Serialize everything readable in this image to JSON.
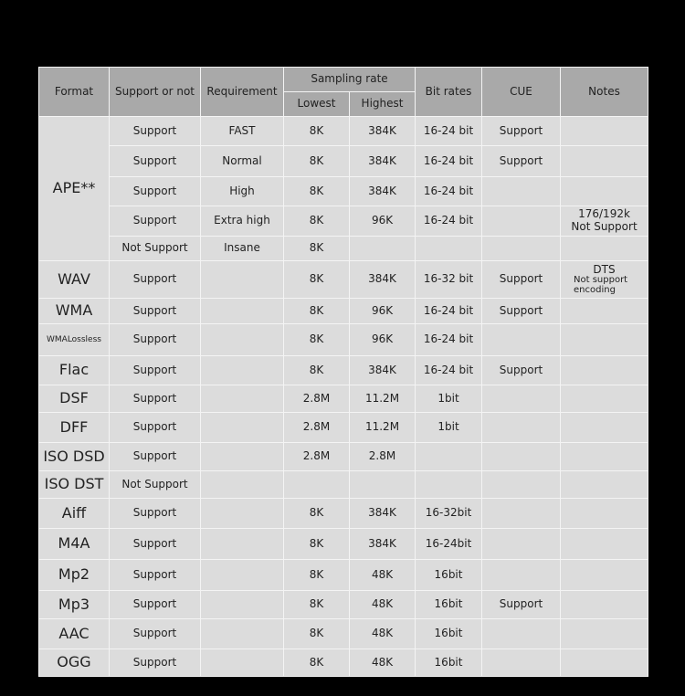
{
  "header": {
    "format": "Format",
    "support": "Support or not",
    "requirement": "Requirement",
    "sampling_rate": "Sampling rate",
    "lowest": "Lowest",
    "highest": "Highest",
    "bit_rates": "Bit rates",
    "cue": "CUE",
    "notes": "Notes"
  },
  "rows": [
    {
      "format": "APE**",
      "support": "Support",
      "requirement": "FAST",
      "lowest": "8K",
      "highest": "384K",
      "bitrate": "16-24 bit",
      "cue": "Support",
      "notes": ""
    },
    {
      "format": "",
      "support": "Support",
      "requirement": "Normal",
      "lowest": "8K",
      "highest": "384K",
      "bitrate": "16-24 bit",
      "cue": "Support",
      "notes": ""
    },
    {
      "format": "",
      "support": "Support",
      "requirement": "High",
      "lowest": "8K",
      "highest": "384K",
      "bitrate": "16-24 bit",
      "cue": "",
      "notes": ""
    },
    {
      "format": "",
      "support": "Support",
      "requirement": "Extra high",
      "lowest": "8K",
      "highest": "96K",
      "bitrate": "16-24 bit",
      "cue": "",
      "notes": "176/192k\nNot Support"
    },
    {
      "format": "",
      "support": "Not Support",
      "requirement": "Insane",
      "lowest": "8K",
      "highest": "",
      "bitrate": "",
      "cue": "",
      "notes": ""
    },
    {
      "format": "WAV",
      "support": "Support",
      "requirement": "",
      "lowest": "8K",
      "highest": "384K",
      "bitrate": "16-32 bit",
      "cue": "Support",
      "notes": "DTS",
      "notes_sub": "Not support\nencoding"
    },
    {
      "format": "WMA",
      "support": "Support",
      "requirement": "",
      "lowest": "8K",
      "highest": "96K",
      "bitrate": "16-24 bit",
      "cue": "Support",
      "notes": ""
    },
    {
      "format": "WMALossless",
      "support": "Support",
      "requirement": "",
      "lowest": "8K",
      "highest": "96K",
      "bitrate": "16-24 bit",
      "cue": "",
      "notes": ""
    },
    {
      "format": "Flac",
      "support": "Support",
      "requirement": "",
      "lowest": "8K",
      "highest": "384K",
      "bitrate": "16-24 bit",
      "cue": "Support",
      "notes": ""
    },
    {
      "format": "DSF",
      "support": "Support",
      "requirement": "",
      "lowest": "2.8M",
      "highest": "11.2M",
      "bitrate": "1bit",
      "cue": "",
      "notes": ""
    },
    {
      "format": "DFF",
      "support": "Support",
      "requirement": "",
      "lowest": "2.8M",
      "highest": "11.2M",
      "bitrate": "1bit",
      "cue": "",
      "notes": ""
    },
    {
      "format": "ISO DSD",
      "support": "Support",
      "requirement": "",
      "lowest": "2.8M",
      "highest": "2.8M",
      "bitrate": "",
      "cue": "",
      "notes": ""
    },
    {
      "format": "ISO DST",
      "support": "Not Support",
      "requirement": "",
      "lowest": "",
      "highest": "",
      "bitrate": "",
      "cue": "",
      "notes": ""
    },
    {
      "format": "Aiff",
      "support": "Support",
      "requirement": "",
      "lowest": "8K",
      "highest": "384K",
      "bitrate": "16-32bit",
      "cue": "",
      "notes": ""
    },
    {
      "format": "M4A",
      "support": "Support",
      "requirement": "",
      "lowest": "8K",
      "highest": "384K",
      "bitrate": "16-24bit",
      "cue": "",
      "notes": ""
    },
    {
      "format": "Mp2",
      "support": "Support",
      "requirement": "",
      "lowest": "8K",
      "highest": "48K",
      "bitrate": "16bit",
      "cue": "",
      "notes": ""
    },
    {
      "format": "Mp3",
      "support": "Support",
      "requirement": "",
      "lowest": "8K",
      "highest": "48K",
      "bitrate": "16bit",
      "cue": "Support",
      "notes": ""
    },
    {
      "format": "AAC",
      "support": "Support",
      "requirement": "",
      "lowest": "8K",
      "highest": "48K",
      "bitrate": "16bit",
      "cue": "",
      "notes": ""
    },
    {
      "format": "OGG",
      "support": "Support",
      "requirement": "",
      "lowest": "8K",
      "highest": "48K",
      "bitrate": "16bit",
      "cue": "",
      "notes": ""
    }
  ]
}
